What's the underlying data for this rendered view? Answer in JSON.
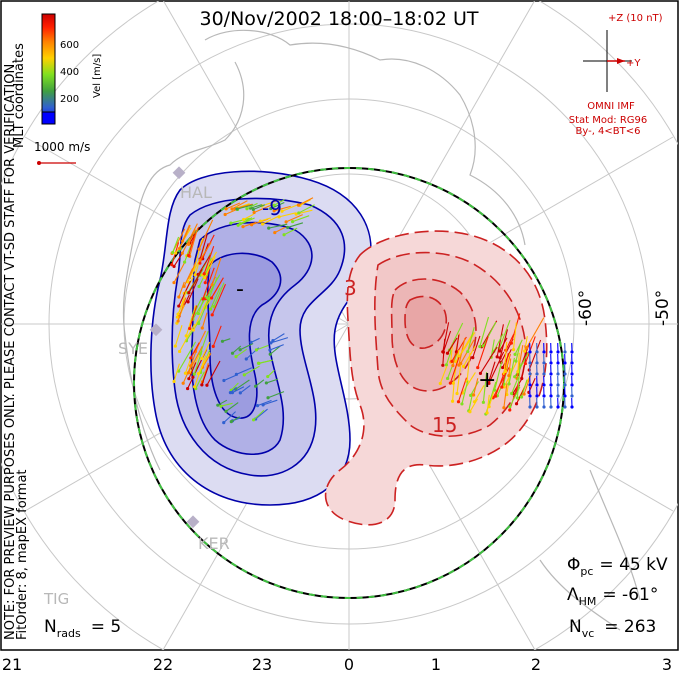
{
  "title": "30/Nov/2002 18:00–18:02 UT",
  "left_notes": {
    "coords": "MLT coordinates",
    "note": "NOTE: FOR PREVIEW PURPOSES ONLY. PLEASE CONTACT VT-SD STAFF FOR VERIFICATION.",
    "fitorder": "FitOrder: 8, mapEX format"
  },
  "colorbar": {
    "label": "Vel [m/s]",
    "ticks": [
      "600",
      "400",
      "200"
    ],
    "colors": [
      "#0000ff",
      "#3060d0",
      "#40a040",
      "#80e020",
      "#ffd000",
      "#ff8000",
      "#ff2000",
      "#cc0000"
    ]
  },
  "scale_label": "1000 m/s",
  "imf": {
    "z_label": "+Z (10 nT)",
    "y_label": "+Y",
    "omni": "OMNI IMF",
    "model": "Stat Mod: RG96",
    "condition": "By-, 4<BT<6"
  },
  "lat_labels": [
    "-60°",
    "-50°"
  ],
  "stations": [
    "HAL",
    "SYE",
    "KER",
    "TIG"
  ],
  "contour_labels": [
    "-9",
    "3",
    "15",
    "-",
    "+"
  ],
  "stats": {
    "phi_symbol": "Φ",
    "phi_sub": "pc",
    "phi_value": "= 45 kV",
    "lambda_symbol": "Λ",
    "lambda_sub": "HM",
    "lambda_value": "= -61°",
    "nvc_symbol": "N",
    "nvc_sub": "vc",
    "nvc_value": "= 263",
    "nrads_symbol": "N",
    "nrads_sub": "rads",
    "nrads_value": "= 5"
  },
  "mlt_labels": [
    "21",
    "22",
    "23",
    "0",
    "1",
    "2",
    "3"
  ],
  "colors": {
    "negative": "#0000aa",
    "positive": "#cc2222",
    "boundary": "#40c040"
  }
}
